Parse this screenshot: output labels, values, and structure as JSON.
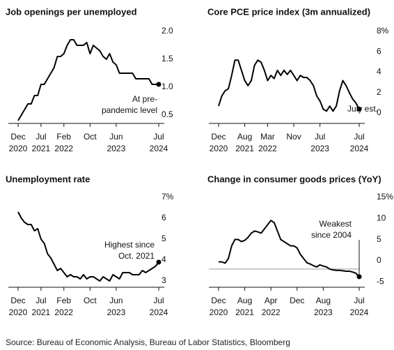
{
  "source": "Source: Bureau of Economic Analysis, Bureau of Labor Statistics, Bloomberg",
  "chart_data": [
    {
      "type": "line",
      "title": "Job openings per unemployed",
      "annotation": [
        "At pre-",
        "pandemic level"
      ],
      "color": "#000000",
      "x": [
        "2020-12",
        "2021-01",
        "2021-02",
        "2021-03",
        "2021-04",
        "2021-05",
        "2021-06",
        "2021-07",
        "2021-08",
        "2021-09",
        "2021-10",
        "2021-11",
        "2021-12",
        "2022-01",
        "2022-02",
        "2022-03",
        "2022-04",
        "2022-05",
        "2022-06",
        "2022-07",
        "2022-08",
        "2022-09",
        "2022-10",
        "2022-11",
        "2022-12",
        "2023-01",
        "2023-02",
        "2023-03",
        "2023-04",
        "2023-05",
        "2023-06",
        "2023-07",
        "2023-08",
        "2023-09",
        "2023-10",
        "2023-11",
        "2023-12",
        "2024-01",
        "2024-02",
        "2024-03",
        "2024-04",
        "2024-05",
        "2024-06",
        "2024-07"
      ],
      "values": [
        0.55,
        0.65,
        0.75,
        0.85,
        0.85,
        1.0,
        1.0,
        1.2,
        1.2,
        1.3,
        1.4,
        1.5,
        1.7,
        1.7,
        1.75,
        1.9,
        2.0,
        2.0,
        1.9,
        1.9,
        1.9,
        1.95,
        1.75,
        1.9,
        1.85,
        1.8,
        1.7,
        1.65,
        1.75,
        1.6,
        1.55,
        1.4,
        1.4,
        1.4,
        1.4,
        1.4,
        1.3,
        1.3,
        1.3,
        1.3,
        1.3,
        1.2,
        1.2,
        1.2
      ],
      "xticks": [
        {
          "value": "2020-12",
          "label": [
            "Dec",
            "2020"
          ]
        },
        {
          "value": "2021-07",
          "label": [
            "Jul",
            "2021"
          ]
        },
        {
          "value": "2022-02",
          "label": [
            "Feb",
            "2022"
          ]
        },
        {
          "value": "2022-10",
          "label": [
            "Oct"
          ]
        },
        {
          "value": "2023-06",
          "label": [
            "Jun",
            "2023"
          ]
        },
        {
          "value": "2024-07",
          "label": [
            "Jul",
            "2024"
          ]
        }
      ],
      "ylim": [
        0.5,
        2.0
      ],
      "yticks": [
        {
          "value": 2.0,
          "label": "2.0"
        },
        1.5,
        {
          "value": 1.0,
          "label": "1.0"
        },
        0.5
      ]
    },
    {
      "type": "line",
      "title": "Core PCE price index (3m annualized)",
      "annotation": [
        "July est."
      ],
      "color": "#000000",
      "x": [
        "2020-12",
        "2021-01",
        "2021-02",
        "2021-03",
        "2021-04",
        "2021-05",
        "2021-06",
        "2021-07",
        "2021-08",
        "2021-09",
        "2021-10",
        "2021-11",
        "2021-12",
        "2022-01",
        "2022-02",
        "2022-03",
        "2022-04",
        "2022-05",
        "2022-06",
        "2022-07",
        "2022-08",
        "2022-09",
        "2022-10",
        "2022-11",
        "2022-12",
        "2023-01",
        "2023-02",
        "2023-03",
        "2023-04",
        "2023-05",
        "2023-06",
        "2023-07",
        "2023-08",
        "2023-09",
        "2023-10",
        "2023-11",
        "2023-12",
        "2024-01",
        "2024-02",
        "2024-03",
        "2024-04",
        "2024-05",
        "2024-06",
        "2024-07"
      ],
      "values": [
        1.5,
        2.5,
        3,
        3.2,
        4.5,
        6,
        6,
        5,
        4,
        3.5,
        4,
        5.5,
        6,
        5.8,
        5,
        4,
        4.5,
        4.2,
        5,
        4.5,
        5,
        4.6,
        5,
        4.5,
        4,
        4.5,
        4.3,
        4.3,
        4,
        3.5,
        2.5,
        2,
        1.2,
        1,
        1.5,
        1,
        1.5,
        3,
        4,
        3.5,
        2.8,
        2.2,
        1.8,
        1.2
      ],
      "xticks": [
        {
          "value": "2020-12",
          "label": [
            "Dec",
            "2020"
          ]
        },
        {
          "value": "2021-08",
          "label": [
            "Aug",
            "2021"
          ]
        },
        {
          "value": "2022-03",
          "label": [
            "Mar",
            "2022"
          ]
        },
        {
          "value": "2022-11",
          "label": [
            "Nov"
          ]
        },
        {
          "value": "2023-07",
          "label": [
            "Jul",
            "2023"
          ]
        },
        {
          "value": "2024-07",
          "label": [
            "Jul",
            "2024"
          ]
        }
      ],
      "ylim": [
        -0.2,
        8
      ],
      "yticks": [
        {
          "value": 8,
          "label": "8%"
        },
        6,
        4,
        2,
        0
      ]
    },
    {
      "type": "line",
      "title": "Unemployment rate",
      "annotation": [
        "Highest since",
        "Oct. 2021"
      ],
      "color": "#000000",
      "x": [
        "2020-12",
        "2021-01",
        "2021-02",
        "2021-03",
        "2021-04",
        "2021-05",
        "2021-06",
        "2021-07",
        "2021-08",
        "2021-09",
        "2021-10",
        "2021-11",
        "2021-12",
        "2022-01",
        "2022-02",
        "2022-03",
        "2022-04",
        "2022-05",
        "2022-06",
        "2022-07",
        "2022-08",
        "2022-09",
        "2022-10",
        "2022-11",
        "2022-12",
        "2023-01",
        "2023-02",
        "2023-03",
        "2023-04",
        "2023-05",
        "2023-06",
        "2023-07",
        "2023-08",
        "2023-09",
        "2023-10",
        "2023-11",
        "2023-12",
        "2024-01",
        "2024-02",
        "2024-03",
        "2024-04",
        "2024-05",
        "2024-06",
        "2024-07"
      ],
      "values": [
        6.7,
        6.4,
        6.2,
        6.1,
        6.1,
        5.8,
        5.9,
        5.4,
        5.2,
        4.7,
        4.5,
        4.2,
        3.9,
        4.0,
        3.8,
        3.6,
        3.7,
        3.6,
        3.6,
        3.5,
        3.7,
        3.5,
        3.6,
        3.6,
        3.5,
        3.4,
        3.6,
        3.5,
        3.4,
        3.7,
        3.6,
        3.5,
        3.8,
        3.8,
        3.8,
        3.7,
        3.7,
        3.7,
        3.9,
        3.8,
        3.9,
        4.0,
        4.1,
        4.3
      ],
      "xticks": [
        {
          "value": "2020-12",
          "label": [
            "Dec",
            "2020"
          ]
        },
        {
          "value": "2021-07",
          "label": [
            "Jul",
            "2021"
          ]
        },
        {
          "value": "2022-02",
          "label": [
            "Feb",
            "2022"
          ]
        },
        {
          "value": "2022-10",
          "label": [
            "Oct"
          ]
        },
        {
          "value": "2023-06",
          "label": [
            "Jun",
            "2023"
          ]
        },
        {
          "value": "2024-07",
          "label": [
            "Jul",
            "2024"
          ]
        }
      ],
      "ylim": [
        3.1,
        7
      ],
      "yticks": [
        {
          "value": 7,
          "label": "7%"
        },
        6,
        5,
        4,
        3
      ]
    },
    {
      "type": "line",
      "title": "Change in consumer goods prices (YoY)",
      "annotation": [
        "Weakest",
        "since 2004"
      ],
      "color": "#000000",
      "zero_line": true,
      "x": [
        "2020-12",
        "2021-01",
        "2021-02",
        "2021-03",
        "2021-04",
        "2021-05",
        "2021-06",
        "2021-07",
        "2021-08",
        "2021-09",
        "2021-10",
        "2021-11",
        "2021-12",
        "2022-01",
        "2022-02",
        "2022-03",
        "2022-04",
        "2022-05",
        "2022-06",
        "2022-07",
        "2022-08",
        "2022-09",
        "2022-10",
        "2022-11",
        "2022-12",
        "2023-01",
        "2023-02",
        "2023-03",
        "2023-04",
        "2023-05",
        "2023-06",
        "2023-07",
        "2023-08",
        "2023-09",
        "2023-10",
        "2023-11",
        "2023-12",
        "2024-01",
        "2024-02",
        "2024-03",
        "2024-04",
        "2024-05",
        "2024-06",
        "2024-07"
      ],
      "values": [
        1.7,
        1.7,
        1.4,
        2.5,
        5.5,
        7,
        7,
        6.5,
        6.8,
        7.5,
        8.5,
        9,
        8.8,
        8.5,
        9.5,
        10.5,
        11.5,
        11,
        9,
        7,
        6.5,
        6,
        5.5,
        5.5,
        5,
        3.5,
        2.5,
        1.5,
        1.2,
        0.8,
        0.5,
        1,
        0.7,
        0.5,
        0,
        -0.2,
        -0.3,
        -0.3,
        -0.4,
        -0.5,
        -0.5,
        -0.7,
        -1,
        -1.8
      ],
      "xticks": [
        {
          "value": "2020-12",
          "label": [
            "Dec",
            "2020"
          ]
        },
        {
          "value": "2021-08",
          "label": [
            "Aug",
            "2021"
          ]
        },
        {
          "value": "2022-04",
          "label": [
            "Apr",
            "2022"
          ]
        },
        {
          "value": "2022-12",
          "label": [
            "Dec"
          ]
        },
        {
          "value": "2023-08",
          "label": [
            "Aug",
            "2023"
          ]
        },
        {
          "value": "2024-07",
          "label": [
            "Jul",
            "2024"
          ]
        }
      ],
      "ylim": [
        -4.3,
        15
      ],
      "yticks": [
        {
          "value": 15,
          "label": "15%"
        },
        10,
        5,
        0,
        -5
      ]
    }
  ]
}
